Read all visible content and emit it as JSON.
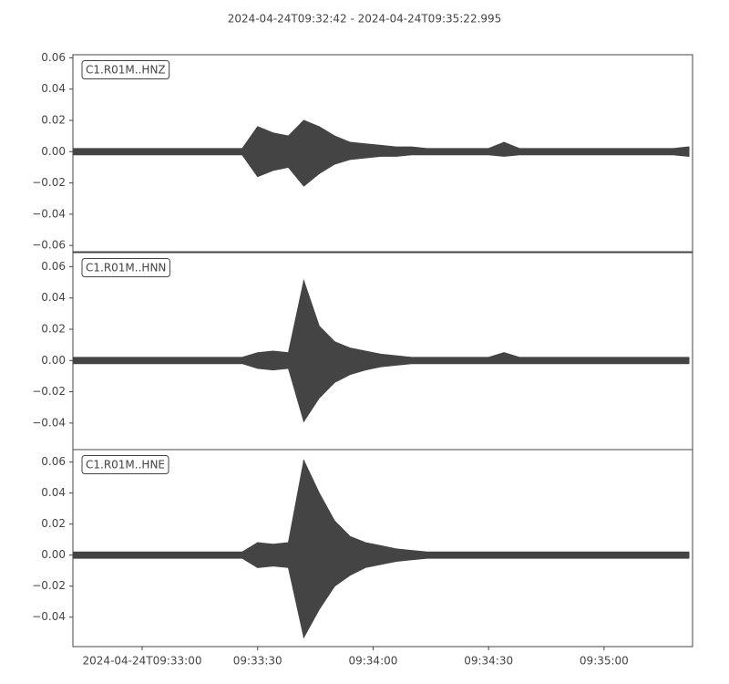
{
  "chart_data": {
    "type": "line",
    "title": "2024-04-24T09:32:42  -  2024-04-24T09:35:22.995",
    "xlim": [
      "2024-04-24T09:32:42",
      "2024-04-24T09:35:22.995"
    ],
    "xticks": [
      {
        "value": "2024-04-24T09:33:00",
        "label": "2024-04-24T09:33:00"
      },
      {
        "value": "2024-04-24T09:33:30",
        "label": "09:33:30"
      },
      {
        "value": "2024-04-24T09:34:00",
        "label": "09:34:00"
      },
      {
        "value": "2024-04-24T09:34:30",
        "label": "09:34:30"
      },
      {
        "value": "2024-04-24T09:35:00",
        "label": "09:35:00"
      }
    ],
    "x": [
      "2024-04-24T09:32:42",
      "2024-04-24T09:32:46",
      "2024-04-24T09:32:50",
      "2024-04-24T09:32:54",
      "2024-04-24T09:32:58",
      "2024-04-24T09:33:02",
      "2024-04-24T09:33:06",
      "2024-04-24T09:33:10",
      "2024-04-24T09:33:14",
      "2024-04-24T09:33:18",
      "2024-04-24T09:33:22",
      "2024-04-24T09:33:26",
      "2024-04-24T09:33:30",
      "2024-04-24T09:33:34",
      "2024-04-24T09:33:38",
      "2024-04-24T09:33:42",
      "2024-04-24T09:33:46",
      "2024-04-24T09:33:50",
      "2024-04-24T09:33:54",
      "2024-04-24T09:33:58",
      "2024-04-24T09:34:02",
      "2024-04-24T09:34:06",
      "2024-04-24T09:34:10",
      "2024-04-24T09:34:14",
      "2024-04-24T09:34:18",
      "2024-04-24T09:34:22",
      "2024-04-24T09:34:26",
      "2024-04-24T09:34:30",
      "2024-04-24T09:34:34",
      "2024-04-24T09:34:38",
      "2024-04-24T09:34:42",
      "2024-04-24T09:34:46",
      "2024-04-24T09:34:50",
      "2024-04-24T09:34:54",
      "2024-04-24T09:34:58",
      "2024-04-24T09:35:02",
      "2024-04-24T09:35:06",
      "2024-04-24T09:35:10",
      "2024-04-24T09:35:14",
      "2024-04-24T09:35:18",
      "2024-04-24T09:35:22"
    ],
    "panels": [
      {
        "label": "C1.R01M..HNZ",
        "color": "#444444",
        "ylim": [
          -0.064,
          0.062
        ],
        "yticks": [
          {
            "value": -0.06,
            "label": "−0.06"
          },
          {
            "value": -0.04,
            "label": "−0.04"
          },
          {
            "value": -0.02,
            "label": "−0.02"
          },
          {
            "value": 0,
            "label": "0.00"
          },
          0.02,
          0.04,
          0.06
        ],
        "upper": [
          0.002,
          0.002,
          0.002,
          0.002,
          0.002,
          0.002,
          0.002,
          0.002,
          0.002,
          0.002,
          0.002,
          0.002,
          0.016,
          0.012,
          0.01,
          0.02,
          0.016,
          0.01,
          0.006,
          0.005,
          0.004,
          0.003,
          0.003,
          0.002,
          0.002,
          0.002,
          0.002,
          0.002,
          0.006,
          0.002,
          0.002,
          0.002,
          0.002,
          0.002,
          0.002,
          0.002,
          0.002,
          0.002,
          0.002,
          0.002,
          0.003
        ],
        "lower": [
          -0.002,
          -0.002,
          -0.002,
          -0.002,
          -0.002,
          -0.002,
          -0.002,
          -0.002,
          -0.002,
          -0.002,
          -0.002,
          -0.002,
          -0.016,
          -0.012,
          -0.01,
          -0.022,
          -0.014,
          -0.008,
          -0.005,
          -0.004,
          -0.003,
          -0.003,
          -0.002,
          -0.002,
          -0.002,
          -0.002,
          -0.002,
          -0.002,
          -0.003,
          -0.002,
          -0.002,
          -0.002,
          -0.002,
          -0.002,
          -0.002,
          -0.002,
          -0.002,
          -0.002,
          -0.002,
          -0.002,
          -0.003
        ]
      },
      {
        "label": "C1.R01M..HNN",
        "color": "#444444",
        "ylim": [
          -0.057,
          0.069
        ],
        "yticks": [
          {
            "value": -0.04,
            "label": "−0.04"
          },
          {
            "value": -0.02,
            "label": "−0.02"
          },
          {
            "value": 0,
            "label": "0.00"
          },
          0.02,
          0.04,
          0.06
        ],
        "upper": [
          0.002,
          0.002,
          0.002,
          0.002,
          0.002,
          0.002,
          0.002,
          0.002,
          0.002,
          0.002,
          0.002,
          0.002,
          0.005,
          0.006,
          0.005,
          0.051,
          0.022,
          0.012,
          0.008,
          0.006,
          0.004,
          0.003,
          0.002,
          0.002,
          0.002,
          0.002,
          0.002,
          0.002,
          0.005,
          0.002,
          0.002,
          0.002,
          0.002,
          0.002,
          0.002,
          0.002,
          0.002,
          0.002,
          0.002,
          0.002,
          0.002
        ],
        "lower": [
          -0.002,
          -0.002,
          -0.002,
          -0.002,
          -0.002,
          -0.002,
          -0.002,
          -0.002,
          -0.002,
          -0.002,
          -0.002,
          -0.002,
          -0.005,
          -0.006,
          -0.005,
          -0.039,
          -0.024,
          -0.014,
          -0.009,
          -0.006,
          -0.004,
          -0.003,
          -0.002,
          -0.002,
          -0.002,
          -0.002,
          -0.002,
          -0.002,
          -0.002,
          -0.002,
          -0.002,
          -0.002,
          -0.002,
          -0.002,
          -0.002,
          -0.002,
          -0.002,
          -0.002,
          -0.002,
          -0.002,
          -0.002
        ]
      },
      {
        "label": "C1.R01M..HNE",
        "color": "#444444",
        "ylim": [
          -0.059,
          0.068
        ],
        "yticks": [
          {
            "value": -0.04,
            "label": "−0.04"
          },
          {
            "value": -0.02,
            "label": "−0.02"
          },
          {
            "value": 0,
            "label": "0.00"
          },
          0.02,
          0.04,
          0.06
        ],
        "upper": [
          0.002,
          0.002,
          0.002,
          0.002,
          0.002,
          0.002,
          0.002,
          0.002,
          0.002,
          0.002,
          0.002,
          0.002,
          0.008,
          0.007,
          0.008,
          0.061,
          0.04,
          0.022,
          0.012,
          0.008,
          0.006,
          0.004,
          0.003,
          0.002,
          0.002,
          0.002,
          0.002,
          0.002,
          0.002,
          0.002,
          0.002,
          0.002,
          0.002,
          0.002,
          0.002,
          0.002,
          0.002,
          0.002,
          0.002,
          0.002,
          0.002
        ],
        "lower": [
          -0.002,
          -0.002,
          -0.002,
          -0.002,
          -0.002,
          -0.002,
          -0.002,
          -0.002,
          -0.002,
          -0.002,
          -0.002,
          -0.002,
          -0.008,
          -0.007,
          -0.008,
          -0.053,
          -0.035,
          -0.02,
          -0.013,
          -0.008,
          -0.006,
          -0.004,
          -0.003,
          -0.002,
          -0.002,
          -0.002,
          -0.002,
          -0.002,
          -0.002,
          -0.002,
          -0.002,
          -0.002,
          -0.002,
          -0.002,
          -0.002,
          -0.002,
          -0.002,
          -0.002,
          -0.002,
          -0.002,
          -0.002
        ]
      }
    ]
  }
}
